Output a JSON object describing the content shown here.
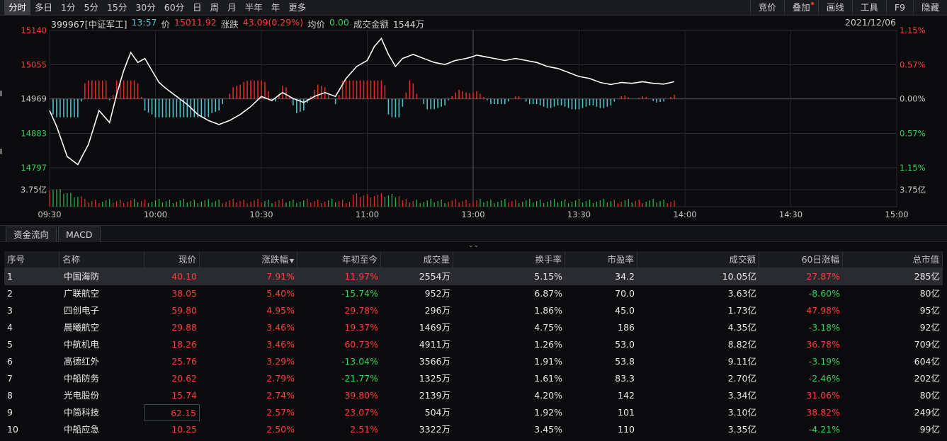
{
  "toolbar": {
    "periods": [
      "分时",
      "多日",
      "1分",
      "5分",
      "15分",
      "30分",
      "60分",
      "日",
      "周",
      "月",
      "半年",
      "年",
      "更多"
    ],
    "right": [
      "竞价",
      "叠加",
      "画线",
      "工具",
      "F9",
      "隐藏"
    ]
  },
  "info": {
    "code_name": "399967[中证军工]",
    "time": "13:57",
    "price_label": "价",
    "price": "15011.92",
    "change_label": "涨跌",
    "change": "43.09(0.29%)",
    "avg_label": "均价",
    "avg": "0.00",
    "amount_label": "成交金额",
    "amount": "1544万",
    "date": "2021/12/06"
  },
  "colors": {
    "up": "#ff3c3c",
    "down": "#2fd35a",
    "line": "#ffffff",
    "teal": "#4fc1c8"
  },
  "chart_data": {
    "type": "line",
    "y_left_ticks": [
      "15140",
      "15055",
      "14969",
      "14883",
      "14797"
    ],
    "y_right_ticks": [
      "1.15%",
      "0.57%",
      "0.00%",
      "0.57%",
      "1.15%"
    ],
    "volume_label": "3.75亿",
    "x_ticks": [
      "09:30",
      "10:00",
      "10:30",
      "11:00",
      "13:00",
      "13:30",
      "14:00",
      "14:30",
      "15:00"
    ],
    "ylim": [
      14797,
      15140
    ],
    "prior_close": 14969,
    "price_series": [
      [
        "09:30",
        14940
      ],
      [
        "09:32",
        14900
      ],
      [
        "09:35",
        14825
      ],
      [
        "09:38",
        14805
      ],
      [
        "09:41",
        14855
      ],
      [
        "09:44",
        14940
      ],
      [
        "09:47",
        14910
      ],
      [
        "09:49",
        14980
      ],
      [
        "09:51",
        15040
      ],
      [
        "09:53",
        15085
      ],
      [
        "09:55",
        15060
      ],
      [
        "09:57",
        15070
      ],
      [
        "09:59",
        15040
      ],
      [
        "10:01",
        15010
      ],
      [
        "10:03",
        14995
      ],
      [
        "10:06",
        14975
      ],
      [
        "10:09",
        14955
      ],
      [
        "10:12",
        14930
      ],
      [
        "10:15",
        14915
      ],
      [
        "10:18",
        14905
      ],
      [
        "10:21",
        14915
      ],
      [
        "10:24",
        14930
      ],
      [
        "10:27",
        14950
      ],
      [
        "10:30",
        14975
      ],
      [
        "10:33",
        14965
      ],
      [
        "10:36",
        14985
      ],
      [
        "10:39",
        14970
      ],
      [
        "10:42",
        14960
      ],
      [
        "10:45",
        14975
      ],
      [
        "10:48",
        14985
      ],
      [
        "10:51",
        14975
      ],
      [
        "10:54",
        15020
      ],
      [
        "10:57",
        15050
      ],
      [
        "11:00",
        15065
      ],
      [
        "11:02",
        15100
      ],
      [
        "11:04",
        15120
      ],
      [
        "11:06",
        15080
      ],
      [
        "11:08",
        15050
      ],
      [
        "11:10",
        15070
      ],
      [
        "11:13",
        15080
      ],
      [
        "11:16",
        15070
      ],
      [
        "11:19",
        15060
      ],
      [
        "11:22",
        15055
      ],
      [
        "11:25",
        15065
      ],
      [
        "11:28",
        15070
      ],
      [
        "11:30",
        15075
      ],
      [
        "13:00",
        15080
      ],
      [
        "13:03",
        15075
      ],
      [
        "13:06",
        15070
      ],
      [
        "13:09",
        15065
      ],
      [
        "13:12",
        15070
      ],
      [
        "13:15",
        15065
      ],
      [
        "13:18",
        15060
      ],
      [
        "13:21",
        15050
      ],
      [
        "13:24",
        15045
      ],
      [
        "13:27",
        15035
      ],
      [
        "13:30",
        15025
      ],
      [
        "13:33",
        15020
      ],
      [
        "13:36",
        15010
      ],
      [
        "13:39",
        15005
      ],
      [
        "13:42",
        15010
      ],
      [
        "13:45",
        15008
      ],
      [
        "13:48",
        15012
      ],
      [
        "13:51",
        15008
      ],
      [
        "13:54",
        15006
      ],
      [
        "13:57",
        15012
      ]
    ]
  },
  "tabs": [
    "资金流向",
    "MACD"
  ],
  "table": {
    "headers": [
      "序号",
      "名称",
      "现价",
      "涨跌幅",
      "年初至今",
      "成交量",
      "换手率",
      "市盈率",
      "成交额",
      "60日涨幅",
      "总市值"
    ],
    "rows": [
      [
        "1",
        "中国海防",
        "40.10",
        "7.91%",
        "11.97%",
        "2554万",
        "5.15%",
        "34.2",
        "10.05亿",
        "27.87%",
        "285亿"
      ],
      [
        "2",
        "广联航空",
        "38.05",
        "5.40%",
        "-15.74%",
        "952万",
        "6.87%",
        "70.0",
        "3.63亿",
        "-8.60%",
        "80亿"
      ],
      [
        "3",
        "四创电子",
        "59.80",
        "4.95%",
        "29.78%",
        "296万",
        "1.86%",
        "45.0",
        "1.73亿",
        "47.98%",
        "95亿"
      ],
      [
        "4",
        "晨曦航空",
        "29.88",
        "3.46%",
        "19.37%",
        "1469万",
        "4.75%",
        "186",
        "4.35亿",
        "-3.18%",
        "92亿"
      ],
      [
        "5",
        "中航机电",
        "18.26",
        "3.46%",
        "60.73%",
        "4911万",
        "1.26%",
        "53.0",
        "8.82亿",
        "36.78%",
        "709亿"
      ],
      [
        "6",
        "高德红外",
        "25.76",
        "3.29%",
        "-13.04%",
        "3566万",
        "1.91%",
        "53.8",
        "9.11亿",
        "-3.19%",
        "604亿"
      ],
      [
        "7",
        "中船防务",
        "20.62",
        "2.79%",
        "-21.77%",
        "1325万",
        "1.61%",
        "83.3",
        "2.70亿",
        "-2.46%",
        "202亿"
      ],
      [
        "8",
        "光电股份",
        "15.74",
        "2.74%",
        "39.80%",
        "2139万",
        "4.20%",
        "142",
        "3.34亿",
        "31.06%",
        "80亿"
      ],
      [
        "9",
        "中简科技",
        "62.15",
        "2.57%",
        "23.07%",
        "504万",
        "1.92%",
        "101",
        "3.10亿",
        "38.82%",
        "249亿"
      ],
      [
        "10",
        "中船应急",
        "10.25",
        "2.50%",
        "2.51%",
        "3322万",
        "3.45%",
        "110",
        "3.35亿",
        "-4.21%",
        "99亿"
      ]
    ]
  }
}
